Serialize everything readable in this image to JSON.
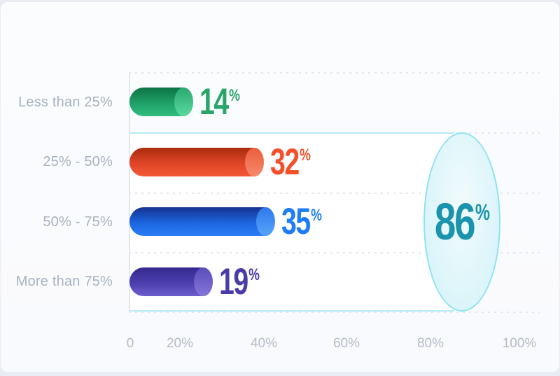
{
  "chart_data": {
    "type": "bar",
    "orientation": "horizontal",
    "title": "",
    "xlabel": "",
    "ylabel": "",
    "categories": [
      "Less than 25%",
      "25% - 50%",
      "50% - 75%",
      "More than 75%"
    ],
    "values": [
      14,
      32,
      35,
      19
    ],
    "value_suffix": "%",
    "x_ticks": [
      "0",
      "20%",
      "40%",
      "60%",
      "80%",
      "100%"
    ],
    "xlim": [
      0,
      100
    ],
    "grid": "horizontal dotted row separators",
    "legend": "none",
    "category_text_color": "#a9b2c0",
    "axis_text_color": "#b4bbc8",
    "series_colors": [
      {
        "name": "green",
        "bar_top": "#0e7345",
        "bar_mid": "#1fa168",
        "bar_bottom": "#32bd7e",
        "cap_top": "#2aa870",
        "cap_bottom": "#5ad99f",
        "value_color": "#2aa56a"
      },
      {
        "name": "red-orange",
        "bar_top": "#a82c0e",
        "bar_mid": "#e04526",
        "bar_bottom": "#f25936",
        "cap_top": "#ec5d3c",
        "cap_bottom": "#f68a6d",
        "value_color": "#f4502c"
      },
      {
        "name": "blue",
        "bar_top": "#16328f",
        "bar_mid": "#1b66e0",
        "bar_bottom": "#2b7ef5",
        "cap_top": "#2e77ec",
        "cap_bottom": "#57a4f9",
        "value_color": "#1e7df6"
      },
      {
        "name": "purple",
        "bar_top": "#352a8e",
        "bar_mid": "#4c3fae",
        "bar_bottom": "#6c5ecb",
        "cap_top": "#5b4dbb",
        "cap_bottom": "#8375d8",
        "value_color": "#4a3ca8"
      }
    ],
    "highlight_group": {
      "value": 86,
      "suffix": "%",
      "covers_categories": [
        "25% - 50%",
        "50% - 75%",
        "More than 75%"
      ],
      "text_color": "#1a93ad",
      "ellipse_fill": "#e0f6fa",
      "ellipse_border": "#8ce4f0",
      "box_border": "#b5ecf4",
      "box_fill": "#ffffff"
    }
  }
}
